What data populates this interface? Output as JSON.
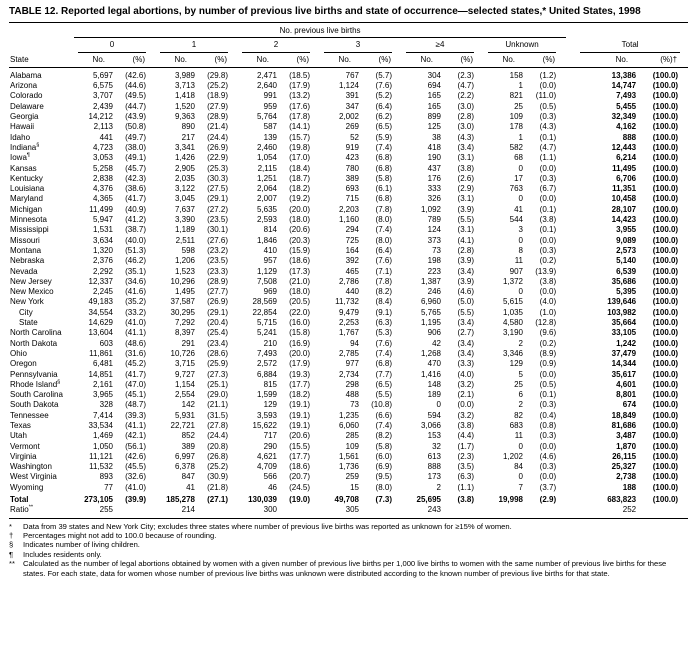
{
  "title": "TABLE 12. Reported legal abortions, by number of previous live births and state of occurrence—selected states,* United States, 1998",
  "table": {
    "spanner": "No. previous live births",
    "state_col": "State",
    "groups": [
      "0",
      "1",
      "2",
      "3",
      "≥4",
      "Unknown"
    ],
    "total_label": "Total",
    "no_label": "No.",
    "pct_label": "(%)",
    "total_pct_label": "(%)†",
    "rows": [
      {
        "state": "Alabama",
        "v": [
          "5,697",
          "(42.6)",
          "3,989",
          "(29.8)",
          "2,471",
          "(18.5)",
          "767",
          "(5.7)",
          "304",
          "(2.3)",
          "158",
          "(1.2)",
          "13,386",
          "(100.0)"
        ]
      },
      {
        "state": "Arizona",
        "v": [
          "6,575",
          "(44.6)",
          "3,713",
          "(25.2)",
          "2,640",
          "(17.9)",
          "1,124",
          "(7.6)",
          "694",
          "(4.7)",
          "1",
          "(0.0)",
          "14,747",
          "(100.0)"
        ]
      },
      {
        "state": "Colorado",
        "v": [
          "3,707",
          "(49.5)",
          "1,418",
          "(18.9)",
          "991",
          "(13.2)",
          "391",
          "(5.2)",
          "165",
          "(2.2)",
          "821",
          "(11.0)",
          "7,493",
          "(100.0)"
        ]
      },
      {
        "state": "Delaware",
        "v": [
          "2,439",
          "(44.7)",
          "1,520",
          "(27.9)",
          "959",
          "(17.6)",
          "347",
          "(6.4)",
          "165",
          "(3.0)",
          "25",
          "(0.5)",
          "5,455",
          "(100.0)"
        ]
      },
      {
        "state": "Georgia",
        "v": [
          "14,212",
          "(43.9)",
          "9,363",
          "(28.9)",
          "5,764",
          "(17.8)",
          "2,002",
          "(6.2)",
          "899",
          "(2.8)",
          "109",
          "(0.3)",
          "32,349",
          "(100.0)"
        ]
      },
      {
        "state": "Hawaii",
        "v": [
          "2,113",
          "(50.8)",
          "890",
          "(21.4)",
          "587",
          "(14.1)",
          "269",
          "(6.5)",
          "125",
          "(3.0)",
          "178",
          "(4.3)",
          "4,162",
          "(100.0)"
        ]
      },
      {
        "state": "Idaho",
        "v": [
          "441",
          "(49.7)",
          "217",
          "(24.4)",
          "139",
          "(15.7)",
          "52",
          "(5.9)",
          "38",
          "(4.3)",
          "1",
          "(0.1)",
          "888",
          "(100.0)"
        ]
      },
      {
        "state": "Indiana",
        "sup": "§",
        "v": [
          "4,723",
          "(38.0)",
          "3,341",
          "(26.9)",
          "2,460",
          "(19.8)",
          "919",
          "(7.4)",
          "418",
          "(3.4)",
          "582",
          "(4.7)",
          "12,443",
          "(100.0)"
        ]
      },
      {
        "state": "Iowa",
        "sup": "¶",
        "v": [
          "3,053",
          "(49.1)",
          "1,426",
          "(22.9)",
          "1,054",
          "(17.0)",
          "423",
          "(6.8)",
          "190",
          "(3.1)",
          "68",
          "(1.1)",
          "6,214",
          "(100.0)"
        ]
      },
      {
        "state": "Kansas",
        "v": [
          "5,258",
          "(45.7)",
          "2,905",
          "(25.3)",
          "2,115",
          "(18.4)",
          "780",
          "(6.8)",
          "437",
          "(3.8)",
          "0",
          "(0.0)",
          "11,495",
          "(100.0)"
        ]
      },
      {
        "state": "Kentucky",
        "v": [
          "2,838",
          "(42.3)",
          "2,035",
          "(30.3)",
          "1,251",
          "(18.7)",
          "389",
          "(5.8)",
          "176",
          "(2.6)",
          "17",
          "(0.3)",
          "6,706",
          "(100.0)"
        ]
      },
      {
        "state": "Louisiana",
        "v": [
          "4,376",
          "(38.6)",
          "3,122",
          "(27.5)",
          "2,064",
          "(18.2)",
          "693",
          "(6.1)",
          "333",
          "(2.9)",
          "763",
          "(6.7)",
          "11,351",
          "(100.0)"
        ]
      },
      {
        "state": "Maryland",
        "v": [
          "4,365",
          "(41.7)",
          "3,045",
          "(29.1)",
          "2,007",
          "(19.2)",
          "715",
          "(6.8)",
          "326",
          "(3.1)",
          "0",
          "(0.0)",
          "10,458",
          "(100.0)"
        ]
      },
      {
        "state": "Michigan",
        "v": [
          "11,499",
          "(40.9)",
          "7,637",
          "(27.2)",
          "5,635",
          "(20.0)",
          "2,203",
          "(7.8)",
          "1,092",
          "(3.9)",
          "41",
          "(0.1)",
          "28,107",
          "(100.0)"
        ]
      },
      {
        "state": "Minnesota",
        "v": [
          "5,947",
          "(41.2)",
          "3,390",
          "(23.5)",
          "2,593",
          "(18.0)",
          "1,160",
          "(8.0)",
          "789",
          "(5.5)",
          "544",
          "(3.8)",
          "14,423",
          "(100.0)"
        ]
      },
      {
        "state": "Mississippi",
        "v": [
          "1,531",
          "(38.7)",
          "1,189",
          "(30.1)",
          "814",
          "(20.6)",
          "294",
          "(7.4)",
          "124",
          "(3.1)",
          "3",
          "(0.1)",
          "3,955",
          "(100.0)"
        ]
      },
      {
        "state": "Missouri",
        "v": [
          "3,634",
          "(40.0)",
          "2,511",
          "(27.6)",
          "1,846",
          "(20.3)",
          "725",
          "(8.0)",
          "373",
          "(4.1)",
          "0",
          "(0.0)",
          "9,089",
          "(100.0)"
        ]
      },
      {
        "state": "Montana",
        "v": [
          "1,320",
          "(51.3)",
          "598",
          "(23.2)",
          "410",
          "(15.9)",
          "164",
          "(6.4)",
          "73",
          "(2.8)",
          "8",
          "(0.3)",
          "2,573",
          "(100.0)"
        ]
      },
      {
        "state": "Nebraska",
        "v": [
          "2,376",
          "(46.2)",
          "1,206",
          "(23.5)",
          "957",
          "(18.6)",
          "392",
          "(7.6)",
          "198",
          "(3.9)",
          "11",
          "(0.2)",
          "5,140",
          "(100.0)"
        ]
      },
      {
        "state": "Nevada",
        "v": [
          "2,292",
          "(35.1)",
          "1,523",
          "(23.3)",
          "1,129",
          "(17.3)",
          "465",
          "(7.1)",
          "223",
          "(3.4)",
          "907",
          "(13.9)",
          "6,539",
          "(100.0)"
        ]
      },
      {
        "state": "New Jersey",
        "v": [
          "12,337",
          "(34.6)",
          "10,296",
          "(28.9)",
          "7,508",
          "(21.0)",
          "2,786",
          "(7.8)",
          "1,387",
          "(3.9)",
          "1,372",
          "(3.8)",
          "35,686",
          "(100.0)"
        ]
      },
      {
        "state": "New Mexico",
        "v": [
          "2,245",
          "(41.6)",
          "1,495",
          "(27.7)",
          "969",
          "(18.0)",
          "440",
          "(8.2)",
          "246",
          "(4.6)",
          "0",
          "(0.0)",
          "5,395",
          "(100.0)"
        ]
      },
      {
        "state": "New York",
        "v": [
          "49,183",
          "(35.2)",
          "37,587",
          "(26.9)",
          "28,569",
          "(20.5)",
          "11,732",
          "(8.4)",
          "6,960",
          "(5.0)",
          "5,615",
          "(4.0)",
          "139,646",
          "(100.0)"
        ]
      },
      {
        "state": "City",
        "indent": true,
        "v": [
          "34,554",
          "(33.2)",
          "30,295",
          "(29.1)",
          "22,854",
          "(22.0)",
          "9,479",
          "(9.1)",
          "5,765",
          "(5.5)",
          "1,035",
          "(1.0)",
          "103,982",
          "(100.0)"
        ]
      },
      {
        "state": "State",
        "indent": true,
        "v": [
          "14,629",
          "(41.0)",
          "7,292",
          "(20.4)",
          "5,715",
          "(16.0)",
          "2,253",
          "(6.3)",
          "1,195",
          "(3.4)",
          "4,580",
          "(12.8)",
          "35,664",
          "(100.0)"
        ]
      },
      {
        "state": "North Carolina",
        "v": [
          "13,604",
          "(41.1)",
          "8,397",
          "(25.4)",
          "5,241",
          "(15.8)",
          "1,767",
          "(5.3)",
          "906",
          "(2.7)",
          "3,190",
          "(9.6)",
          "33,105",
          "(100.0)"
        ]
      },
      {
        "state": "North Dakota",
        "v": [
          "603",
          "(48.6)",
          "291",
          "(23.4)",
          "210",
          "(16.9)",
          "94",
          "(7.6)",
          "42",
          "(3.4)",
          "2",
          "(0.2)",
          "1,242",
          "(100.0)"
        ]
      },
      {
        "state": "Ohio",
        "v": [
          "11,861",
          "(31.6)",
          "10,726",
          "(28.6)",
          "7,493",
          "(20.0)",
          "2,785",
          "(7.4)",
          "1,268",
          "(3.4)",
          "3,346",
          "(8.9)",
          "37,479",
          "(100.0)"
        ]
      },
      {
        "state": "Oregon",
        "v": [
          "6,481",
          "(45.2)",
          "3,715",
          "(25.9)",
          "2,572",
          "(17.9)",
          "977",
          "(6.8)",
          "470",
          "(3.3)",
          "129",
          "(0.9)",
          "14,344",
          "(100.0)"
        ]
      },
      {
        "state": "Pennsylvania",
        "v": [
          "14,851",
          "(41.7)",
          "9,727",
          "(27.3)",
          "6,884",
          "(19.3)",
          "2,734",
          "(7.7)",
          "1,416",
          "(4.0)",
          "5",
          "(0.0)",
          "35,617",
          "(100.0)"
        ]
      },
      {
        "state": "Rhode Island",
        "sup": "§",
        "v": [
          "2,161",
          "(47.0)",
          "1,154",
          "(25.1)",
          "815",
          "(17.7)",
          "298",
          "(6.5)",
          "148",
          "(3.2)",
          "25",
          "(0.5)",
          "4,601",
          "(100.0)"
        ]
      },
      {
        "state": "South Carolina",
        "v": [
          "3,965",
          "(45.1)",
          "2,554",
          "(29.0)",
          "1,599",
          "(18.2)",
          "488",
          "(5.5)",
          "189",
          "(2.1)",
          "6",
          "(0.1)",
          "8,801",
          "(100.0)"
        ]
      },
      {
        "state": "South Dakota",
        "v": [
          "328",
          "(48.7)",
          "142",
          "(21.1)",
          "129",
          "(19.1)",
          "73",
          "(10.8)",
          "0",
          "(0.0)",
          "2",
          "(0.3)",
          "674",
          "(100.0)"
        ]
      },
      {
        "state": "Tennessee",
        "v": [
          "7,414",
          "(39.3)",
          "5,931",
          "(31.5)",
          "3,593",
          "(19.1)",
          "1,235",
          "(6.6)",
          "594",
          "(3.2)",
          "82",
          "(0.4)",
          "18,849",
          "(100.0)"
        ]
      },
      {
        "state": "Texas",
        "v": [
          "33,534",
          "(41.1)",
          "22,721",
          "(27.8)",
          "15,622",
          "(19.1)",
          "6,060",
          "(7.4)",
          "3,066",
          "(3.8)",
          "683",
          "(0.8)",
          "81,686",
          "(100.0)"
        ]
      },
      {
        "state": "Utah",
        "v": [
          "1,469",
          "(42.1)",
          "852",
          "(24.4)",
          "717",
          "(20.6)",
          "285",
          "(8.2)",
          "153",
          "(4.4)",
          "11",
          "(0.3)",
          "3,487",
          "(100.0)"
        ]
      },
      {
        "state": "Vermont",
        "v": [
          "1,050",
          "(56.1)",
          "389",
          "(20.8)",
          "290",
          "(15.5)",
          "109",
          "(5.8)",
          "32",
          "(1.7)",
          "0",
          "(0.0)",
          "1,870",
          "(100.0)"
        ]
      },
      {
        "state": "Virginia",
        "v": [
          "11,121",
          "(42.6)",
          "6,997",
          "(26.8)",
          "4,621",
          "(17.7)",
          "1,561",
          "(6.0)",
          "613",
          "(2.3)",
          "1,202",
          "(4.6)",
          "26,115",
          "(100.0)"
        ]
      },
      {
        "state": "Washington",
        "v": [
          "11,532",
          "(45.5)",
          "6,378",
          "(25.2)",
          "4,709",
          "(18.6)",
          "1,736",
          "(6.9)",
          "888",
          "(3.5)",
          "84",
          "(0.3)",
          "25,327",
          "(100.0)"
        ]
      },
      {
        "state": "West Virginia",
        "v": [
          "893",
          "(32.6)",
          "847",
          "(30.9)",
          "566",
          "(20.7)",
          "259",
          "(9.5)",
          "173",
          "(6.3)",
          "0",
          "(0.0)",
          "2,738",
          "(100.0)"
        ]
      },
      {
        "state": "Wyoming",
        "v": [
          "77",
          "(41.0)",
          "41",
          "(21.8)",
          "46",
          "(24.5)",
          "15",
          "(8.0)",
          "2",
          "(1.1)",
          "7",
          "(3.7)",
          "188",
          "(100.0)"
        ]
      },
      {
        "state": "Total",
        "bold": true,
        "v": [
          "273,105",
          "(39.9)",
          "185,278",
          "(27.1)",
          "130,039",
          "(19.0)",
          "49,708",
          "(7.3)",
          "25,695",
          "(3.8)",
          "19,998",
          "(2.9)",
          "683,823",
          "(100.0)"
        ]
      },
      {
        "state": "Ratio",
        "sup": "**",
        "ratio": true,
        "v": [
          "255",
          "",
          "214",
          "",
          "300",
          "",
          "305",
          "",
          "243",
          "",
          "",
          "",
          "252",
          ""
        ]
      }
    ]
  },
  "footnotes": [
    {
      "mark": "*",
      "text": "Data from 39 states and New York City; excludes three states where number of previous live births was reported as unknown for ≥15% of women."
    },
    {
      "mark": "†",
      "text": "Percentages might not add to 100.0 because of rounding."
    },
    {
      "mark": "§",
      "text": "Indicates number of living children."
    },
    {
      "mark": "¶",
      "text": "Includes residents only."
    },
    {
      "mark": "**",
      "text": "Calculated as the number of legal abortions obtained by women with a given number of previous live births per 1,000 live births to women with the same number of previous live births for these states. For each state, data for women whose number of previous live births was unknown were distributed according to the known number of previous live births for that state."
    }
  ]
}
